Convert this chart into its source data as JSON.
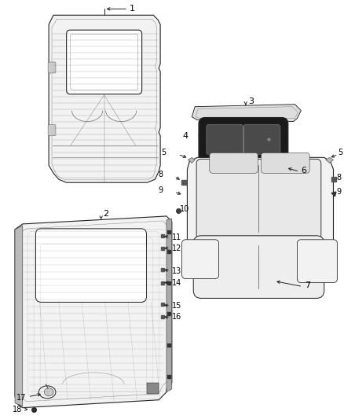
{
  "bg_color": "#ffffff",
  "figsize": [
    4.38,
    5.33
  ],
  "dpi": 100,
  "lc": "#555555",
  "lc_dark": "#222222",
  "lc_thin": "#888888",
  "fc_panel": "#f2f2f2",
  "fc_white": "#ffffff",
  "fc_dark": "#333333",
  "text_color": "#000000",
  "lw_main": 0.8,
  "lw_thin": 0.35,
  "lw_thick": 1.2
}
